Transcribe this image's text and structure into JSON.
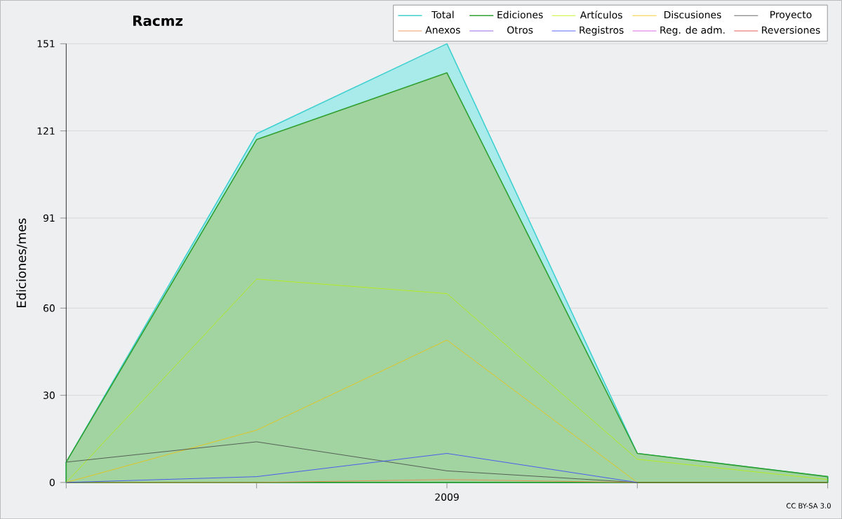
{
  "chart_data": {
    "type": "line",
    "title": "Racmz",
    "ylabel": "Ediciones/mes",
    "categories": [
      null,
      null,
      "2009",
      null,
      null
    ],
    "series": [
      {
        "name": "Total",
        "type": "area",
        "color": "#40d0d0",
        "values": [
          7,
          120,
          151,
          10,
          2
        ]
      },
      {
        "name": "Ediciones",
        "type": "area",
        "color": "#30a030",
        "values": [
          7,
          118,
          141,
          10,
          2
        ]
      },
      {
        "name": "Artículos",
        "color": "#b8f000",
        "values": [
          0,
          70,
          65,
          8,
          1
        ]
      },
      {
        "name": "Discusiones",
        "color": "#f0c000",
        "values": [
          0,
          18,
          49,
          0,
          0
        ]
      },
      {
        "name": "Proyecto",
        "color": "#404040",
        "values": [
          7,
          14,
          4,
          0,
          0
        ]
      },
      {
        "name": "Anexos",
        "color": "#f08040",
        "values": [
          0,
          0,
          1,
          0,
          null
        ]
      },
      {
        "name": "Otros",
        "color": "#8040e0",
        "values": [
          null,
          null,
          null,
          null,
          null
        ]
      },
      {
        "name": "Registros",
        "color": "#3040ff",
        "values": [
          0,
          2,
          10,
          0,
          null
        ]
      },
      {
        "name": "Reg. de adm.",
        "color": "#d040e0",
        "values": [
          null,
          null,
          null,
          null,
          null
        ]
      },
      {
        "name": "Reversiones",
        "color": "#e03030",
        "values": [
          null,
          null,
          null,
          null,
          null
        ]
      }
    ],
    "ylim": [
      0,
      151
    ],
    "yticks": [
      0,
      30,
      60,
      91,
      121,
      151
    ],
    "grid": "y",
    "legend": "top right",
    "annotations": [
      "CC BY-SA 3.0"
    ]
  }
}
